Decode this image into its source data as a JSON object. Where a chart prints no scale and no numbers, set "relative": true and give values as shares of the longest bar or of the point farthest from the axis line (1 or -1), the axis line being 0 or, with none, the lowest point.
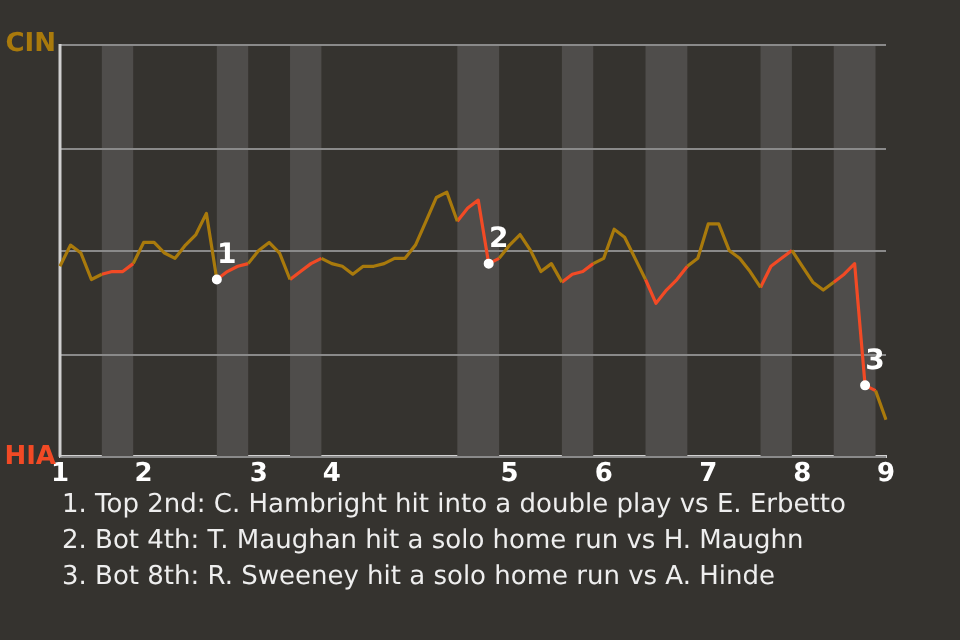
{
  "chart_data": {
    "type": "line",
    "relative": true,
    "categories": [
      "1",
      null,
      null,
      null,
      null,
      null,
      null,
      null,
      "2",
      null,
      null,
      null,
      null,
      null,
      null,
      null,
      null,
      null,
      null,
      "3",
      null,
      null,
      null,
      null,
      null,
      null,
      "4",
      null,
      null,
      null,
      null,
      null,
      null,
      null,
      null,
      null,
      null,
      null,
      null,
      null,
      null,
      null,
      null,
      "5",
      null,
      null,
      null,
      null,
      null,
      null,
      null,
      null,
      "6",
      null,
      null,
      null,
      null,
      null,
      null,
      null,
      null,
      null,
      "7",
      null,
      null,
      null,
      null,
      null,
      null,
      null,
      null,
      "8",
      null,
      null,
      null,
      null,
      null,
      null,
      null,
      "9"
    ],
    "series": [
      {
        "color": "#a97a0c",
        "values": [
          0.72,
          0.8,
          0.77,
          0.67,
          0.69,
          null,
          null,
          0.73,
          0.81,
          0.81,
          0.77,
          0.75,
          0.8,
          0.84,
          0.92,
          0.67,
          null,
          null,
          0.73,
          0.78,
          0.81,
          0.77,
          0.67,
          null,
          null,
          0.75,
          0.73,
          0.72,
          0.69,
          0.72,
          0.72,
          0.73,
          0.75,
          0.75,
          0.8,
          0.89,
          0.98,
          1,
          0.89,
          null,
          null,
          null,
          0.75,
          0.8,
          0.84,
          0.78,
          0.7,
          0.73,
          0.66,
          null,
          null,
          0.73,
          0.75,
          0.86,
          0.83,
          0.75,
          0.67,
          null,
          null,
          null,
          0.72,
          0.75,
          0.88,
          0.88,
          0.78,
          0.75,
          0.7,
          0.64,
          null,
          null,
          0.78,
          0.72,
          0.66,
          0.63,
          0.66,
          null,
          null,
          null,
          0.25,
          0.14
        ]
      },
      {
        "color": "#f24a25",
        "values": [
          null,
          null,
          null,
          null,
          0.69,
          0.7,
          0.7,
          0.73,
          null,
          null,
          null,
          null,
          null,
          null,
          null,
          0.67,
          0.7,
          0.72,
          0.73,
          null,
          null,
          null,
          0.67,
          0.7,
          0.73,
          0.75,
          null,
          null,
          null,
          null,
          null,
          null,
          null,
          null,
          null,
          null,
          null,
          null,
          0.89,
          0.94,
          0.97,
          0.73,
          0.75,
          null,
          null,
          null,
          null,
          null,
          0.66,
          0.69,
          0.7,
          0.73,
          null,
          null,
          null,
          null,
          0.67,
          0.58,
          0.63,
          0.67,
          0.72,
          null,
          null,
          null,
          null,
          null,
          null,
          0.64,
          0.72,
          0.75,
          0.78,
          null,
          null,
          null,
          0.66,
          0.69,
          0.73,
          0.27,
          0.25,
          null
        ]
      },
      {
        "type": "scatter",
        "name": "1",
        "color": "#ffffff",
        "marker": "circle",
        "values": [
          null,
          null,
          null,
          null,
          null,
          null,
          null,
          null,
          null,
          null,
          null,
          null,
          null,
          null,
          null,
          0.67,
          null,
          null,
          null,
          null,
          null,
          null,
          null,
          null,
          null,
          null,
          null,
          null,
          null,
          null,
          null,
          null,
          null,
          null,
          null,
          null,
          null,
          null,
          null,
          null,
          null,
          null,
          null,
          null,
          null,
          null,
          null,
          null,
          null,
          null,
          null,
          null,
          null,
          null,
          null,
          null,
          null,
          null,
          null,
          null,
          null,
          null,
          null,
          null,
          null,
          null,
          null,
          null,
          null,
          null,
          null,
          null,
          null,
          null,
          null,
          null,
          null,
          null,
          null,
          null
        ]
      },
      {
        "type": "scatter",
        "name": "2",
        "color": "#ffffff",
        "marker": "circle",
        "values": [
          null,
          null,
          null,
          null,
          null,
          null,
          null,
          null,
          null,
          null,
          null,
          null,
          null,
          null,
          null,
          null,
          null,
          null,
          null,
          null,
          null,
          null,
          null,
          null,
          null,
          null,
          null,
          null,
          null,
          null,
          null,
          null,
          null,
          null,
          null,
          null,
          null,
          null,
          null,
          null,
          null,
          0.73,
          null,
          null,
          null,
          null,
          null,
          null,
          null,
          null,
          null,
          null,
          null,
          null,
          null,
          null,
          null,
          null,
          null,
          null,
          null,
          null,
          null,
          null,
          null,
          null,
          null,
          null,
          null,
          null,
          null,
          null,
          null,
          null,
          null,
          null,
          null,
          null,
          null,
          null
        ]
      },
      {
        "type": "scatter",
        "name": "3",
        "color": "#ffffff",
        "marker": "circle",
        "values": [
          null,
          null,
          null,
          null,
          null,
          null,
          null,
          null,
          null,
          null,
          null,
          null,
          null,
          null,
          null,
          null,
          null,
          null,
          null,
          null,
          null,
          null,
          null,
          null,
          null,
          null,
          null,
          null,
          null,
          null,
          null,
          null,
          null,
          null,
          null,
          null,
          null,
          null,
          null,
          null,
          null,
          null,
          null,
          null,
          null,
          null,
          null,
          null,
          null,
          null,
          null,
          null,
          null,
          null,
          null,
          null,
          null,
          null,
          null,
          null,
          null,
          null,
          null,
          null,
          null,
          null,
          null,
          null,
          null,
          null,
          null,
          null,
          null,
          null,
          null,
          null,
          null,
          0.27,
          null,
          null
        ]
      }
    ],
    "ref_lines": [
      {
        "axis": "y",
        "value": 1.56,
        "label": "CIN"
      },
      {
        "axis": "y",
        "value": 1.17
      },
      {
        "axis": "y",
        "value": 0.78
      },
      {
        "axis": "y",
        "value": 0.39
      },
      {
        "axis": "y",
        "value": 0,
        "label": "HIA"
      }
    ],
    "marker": "none",
    "annotations": [
      "1. Top 2nd: C. Hambright hit into a double play vs E. Erbetto",
      "2. Bot 4th: T. Maughan hit a solo home run vs H. Maughn",
      "3. Bot 8th: R. Sweeney hit a solo home run vs A. Hinde"
    ]
  }
}
